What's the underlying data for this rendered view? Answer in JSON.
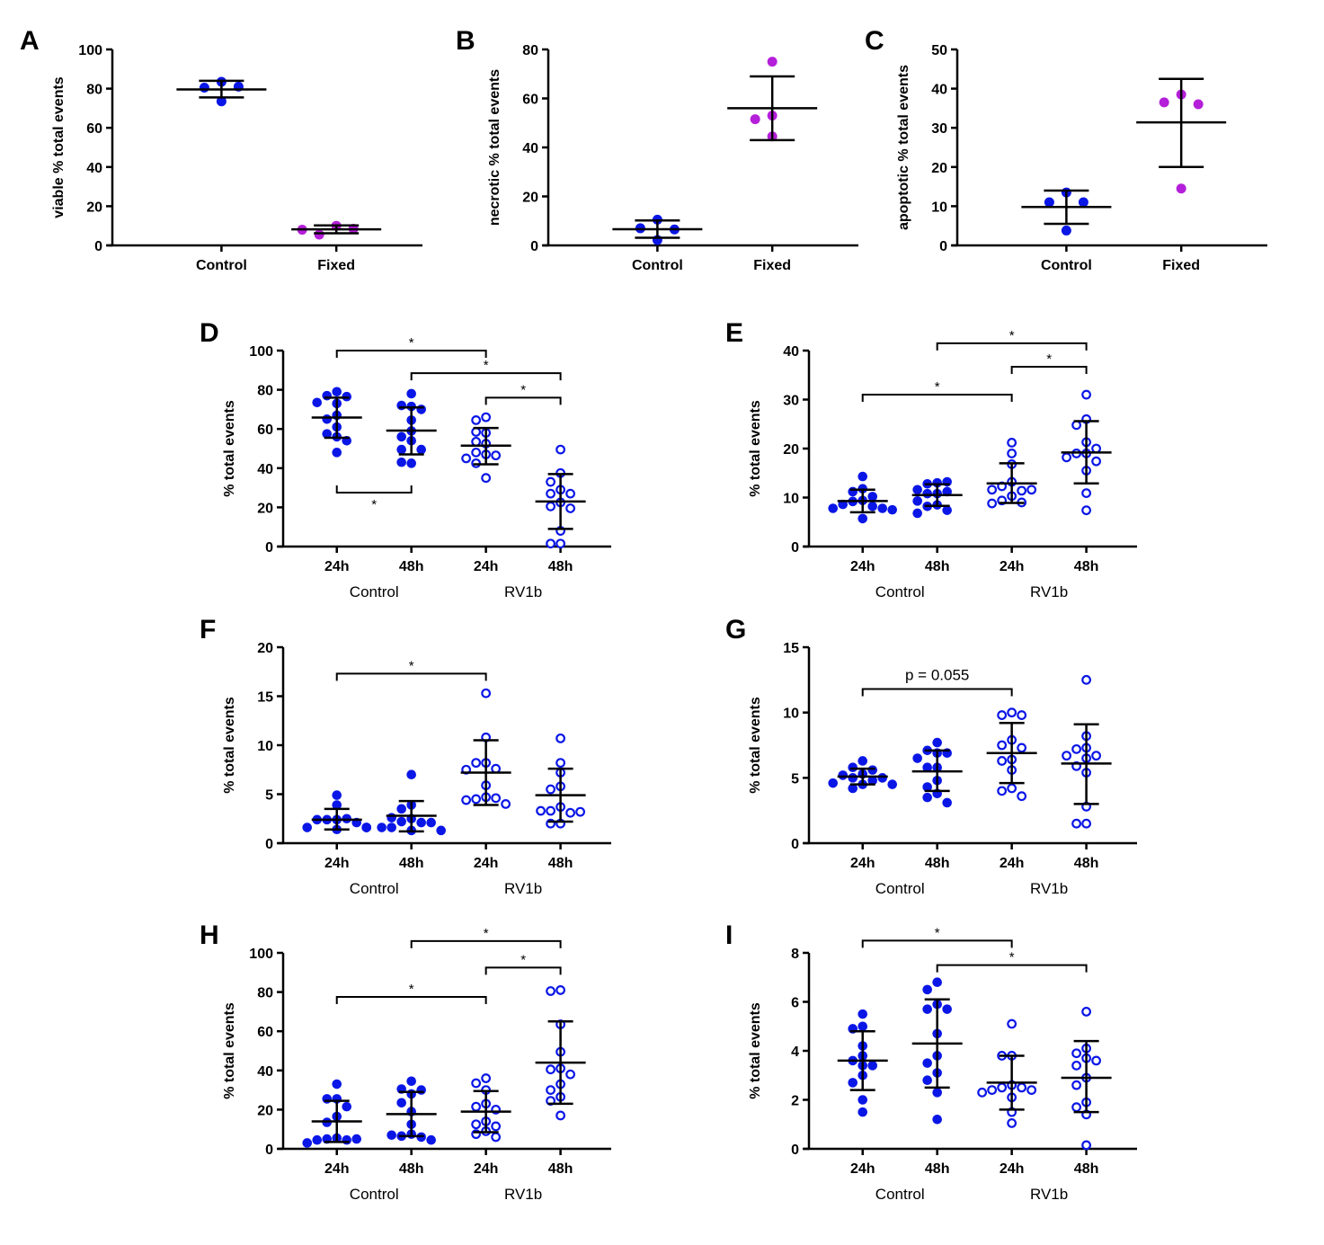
{
  "figure": {
    "colors": {
      "control": "#0a16e6",
      "fixed": "#b41fd9",
      "axis": "#000000"
    }
  },
  "chart_data": [
    {
      "id": "A",
      "type": "scatter",
      "letter": "A",
      "ylabel": "viable % total events",
      "ylim": [
        0,
        100
      ],
      "yticks": [
        0,
        20,
        40,
        60,
        80,
        100
      ],
      "categories": [
        "Control",
        "Fixed"
      ],
      "group_labels": [],
      "series": [
        {
          "name": "Control",
          "style": "filled",
          "color": "control",
          "values": [
            83.5,
            80.5,
            81,
            73.5
          ],
          "mean": 79.6,
          "sd_low": 75.5,
          "sd_high": 84
        },
        {
          "name": "Fixed",
          "style": "filled",
          "color": "fixed",
          "values": [
            10,
            5.5,
            8.5,
            8
          ],
          "mean": 8.2,
          "sd_low": 6.2,
          "sd_high": 10.2
        }
      ],
      "annotations": []
    },
    {
      "id": "B",
      "type": "scatter",
      "letter": "B",
      "ylabel": "necrotic % total events",
      "ylim": [
        0,
        80
      ],
      "yticks": [
        0,
        20,
        40,
        60,
        80
      ],
      "categories": [
        "Control",
        "Fixed"
      ],
      "group_labels": [],
      "series": [
        {
          "name": "Control",
          "style": "filled",
          "color": "control",
          "values": [
            10.5,
            7,
            6.5,
            2.2
          ],
          "mean": 6.6,
          "sd_low": 3.1,
          "sd_high": 10.2
        },
        {
          "name": "Fixed",
          "style": "filled",
          "color": "fixed",
          "values": [
            75,
            53,
            51.5,
            44.5
          ],
          "mean": 56,
          "sd_low": 43,
          "sd_high": 69
        }
      ],
      "annotations": []
    },
    {
      "id": "C",
      "type": "scatter",
      "letter": "C",
      "ylabel": "apoptotic % total events",
      "ylim": [
        0,
        50
      ],
      "yticks": [
        0,
        10,
        20,
        30,
        40,
        50
      ],
      "categories": [
        "Control",
        "Fixed"
      ],
      "group_labels": [],
      "series": [
        {
          "name": "Control",
          "style": "filled",
          "color": "control",
          "values": [
            13.5,
            11,
            11,
            3.8
          ],
          "mean": 9.8,
          "sd_low": 5.5,
          "sd_high": 14
        },
        {
          "name": "Fixed",
          "style": "filled",
          "color": "fixed",
          "values": [
            38.5,
            36.5,
            36,
            14.5
          ],
          "mean": 31.4,
          "sd_low": 20,
          "sd_high": 42.5
        }
      ],
      "annotations": []
    },
    {
      "id": "D",
      "type": "scatter",
      "letter": "D",
      "ylabel": "% total events",
      "ylim": [
        0,
        100
      ],
      "yticks": [
        0,
        20,
        40,
        60,
        80,
        100
      ],
      "categories": [
        "24h",
        "48h",
        "24h",
        "48h"
      ],
      "group_labels": [
        "Control",
        "RV1b"
      ],
      "series": [
        {
          "name": "Control 24h",
          "style": "filled",
          "color": "control",
          "values": [
            79,
            77,
            76.5,
            73,
            73.5,
            67,
            65,
            61,
            57.5,
            56,
            54,
            48
          ],
          "mean": 65.8,
          "sd_low": 55.5,
          "sd_high": 76
        },
        {
          "name": "Control 48h",
          "style": "filled",
          "color": "control",
          "values": [
            78,
            71.5,
            72,
            70,
            64.5,
            59,
            56,
            54,
            49.5,
            49.5,
            42.5,
            43
          ],
          "mean": 59.2,
          "sd_low": 47,
          "sd_high": 71
        },
        {
          "name": "RV1b 24h",
          "style": "open",
          "color": "control",
          "values": [
            66,
            64.5,
            58,
            58.5,
            52.5,
            53.5,
            48,
            47,
            46.5,
            45,
            42.5,
            35
          ],
          "mean": 51.5,
          "sd_low": 42,
          "sd_high": 60.5
        },
        {
          "name": "RV1b 48h",
          "style": "open",
          "color": "control",
          "values": [
            49.5,
            37.5,
            33,
            29,
            27,
            22.5,
            27,
            20.5,
            19.5,
            8,
            1.5,
            1.5
          ],
          "mean": 23,
          "sd_low": 9,
          "sd_high": 37
        }
      ],
      "annotations": [
        {
          "from": 0,
          "to": 2,
          "y": 100,
          "label": "*",
          "dir": "down"
        },
        {
          "from": 1,
          "to": 3,
          "y": 88.5,
          "label": "*",
          "dir": "down"
        },
        {
          "from": 2,
          "to": 3,
          "y": 76,
          "label": "*",
          "dir": "down"
        },
        {
          "from": 0,
          "to": 1,
          "y": 27.5,
          "label": "*",
          "dir": "up"
        }
      ]
    },
    {
      "id": "E",
      "type": "scatter",
      "letter": "E",
      "ylabel": "% total events",
      "ylim": [
        0,
        40
      ],
      "yticks": [
        0,
        10,
        20,
        30,
        40
      ],
      "categories": [
        "24h",
        "48h",
        "24h",
        "48h"
      ],
      "group_labels": [
        "Control",
        "RV1b"
      ],
      "series": [
        {
          "name": "Control 24h",
          "style": "filled",
          "color": "control",
          "values": [
            14.3,
            11.8,
            11.2,
            10.2,
            9.4,
            9.2,
            8.6,
            8.2,
            7.8,
            7.8,
            7.5,
            5.7
          ],
          "mean": 9.3,
          "sd_low": 7,
          "sd_high": 11.6
        },
        {
          "name": "Control 48h",
          "style": "filled",
          "color": "control",
          "values": [
            13,
            12.8,
            13.2,
            11.2,
            11.6,
            10.8,
            10.8,
            9.3,
            8.5,
            8.2,
            7.4,
            6.8
          ],
          "mean": 10.5,
          "sd_low": 8.3,
          "sd_high": 12.7
        },
        {
          "name": "RV1b 24h",
          "style": "open",
          "color": "control",
          "values": [
            21.2,
            19,
            16.8,
            13.2,
            12.3,
            11.4,
            11.6,
            11.6,
            10.3,
            9.4,
            9,
            8.8
          ],
          "mean": 12.9,
          "sd_low": 8.9,
          "sd_high": 17
        },
        {
          "name": "RV1b 48h",
          "style": "open",
          "color": "control",
          "values": [
            31,
            26,
            24.8,
            21.3,
            19,
            19,
            20,
            18.2,
            17.4,
            15.5,
            10.9,
            7.4
          ],
          "mean": 19.2,
          "sd_low": 12.9,
          "sd_high": 25.6
        }
      ],
      "annotations": [
        {
          "from": 1,
          "to": 3,
          "y": 41.5,
          "label": "*",
          "dir": "down"
        },
        {
          "from": 2,
          "to": 3,
          "y": 36.7,
          "label": "*",
          "dir": "down"
        },
        {
          "from": 0,
          "to": 2,
          "y": 31,
          "label": "*",
          "dir": "down"
        }
      ]
    },
    {
      "id": "F",
      "type": "scatter",
      "letter": "F",
      "ylabel": "% total events",
      "ylim": [
        0,
        20
      ],
      "yticks": [
        0,
        5,
        10,
        15,
        20
      ],
      "categories": [
        "24h",
        "48h",
        "24h",
        "48h"
      ],
      "group_labels": [
        "Control",
        "RV1b"
      ],
      "series": [
        {
          "name": "Control 24h",
          "style": "filled",
          "color": "control",
          "values": [
            4.9,
            3.9,
            2.4,
            2.4,
            2.5,
            2.4,
            2.1,
            1.6,
            1.6,
            1.6,
            1.4,
            1.6
          ],
          "mean": 2.4,
          "sd_low": 1.4,
          "sd_high": 3.5
        },
        {
          "name": "Control 48h",
          "style": "filled",
          "color": "control",
          "values": [
            7,
            3.9,
            3.5,
            2.5,
            2.2,
            2.1,
            2.6,
            2.1,
            1.6,
            1.6,
            1.3,
            1.3
          ],
          "mean": 2.8,
          "sd_low": 1.2,
          "sd_high": 4.3
        },
        {
          "name": "RV1b 24h",
          "style": "open",
          "color": "control",
          "values": [
            15.3,
            10.8,
            8.2,
            8.2,
            7.6,
            7.5,
            5.9,
            4.7,
            4.5,
            4.6,
            4.4,
            4
          ],
          "mean": 7.2,
          "sd_low": 3.9,
          "sd_high": 10.5
        },
        {
          "name": "RV1b 48h",
          "style": "open",
          "color": "control",
          "values": [
            10.7,
            8.2,
            7.2,
            5.8,
            5.5,
            3.7,
            3.3,
            3.1,
            3.3,
            3.2,
            2,
            2
          ],
          "mean": 4.9,
          "sd_low": 2.2,
          "sd_high": 7.6
        }
      ],
      "annotations": [
        {
          "from": 0,
          "to": 2,
          "y": 17.3,
          "label": "*",
          "dir": "down"
        }
      ]
    },
    {
      "id": "G",
      "type": "scatter",
      "letter": "G",
      "ylabel": "% total events",
      "ylim": [
        0,
        15
      ],
      "yticks": [
        0,
        5,
        10,
        15
      ],
      "categories": [
        "24h",
        "48h",
        "24h",
        "48h"
      ],
      "group_labels": [
        "Control",
        "RV1b"
      ],
      "series": [
        {
          "name": "Control 24h",
          "style": "filled",
          "color": "control",
          "values": [
            6.3,
            5.8,
            5.6,
            5.3,
            5.2,
            5,
            5,
            4.8,
            4.6,
            4.5,
            4.5,
            4.2
          ],
          "mean": 5.1,
          "sd_low": 4.5,
          "sd_high": 5.7
        },
        {
          "name": "Control 48h",
          "style": "filled",
          "color": "control",
          "values": [
            7.7,
            7.1,
            6.9,
            6.9,
            6.5,
            5.8,
            5.8,
            4.8,
            4.3,
            3.8,
            3.5,
            3.1
          ],
          "mean": 5.5,
          "sd_low": 4,
          "sd_high": 7.1
        },
        {
          "name": "RV1b 24h",
          "style": "open",
          "color": "control",
          "values": [
            10,
            9.8,
            9.8,
            7.9,
            7.5,
            7.3,
            6.4,
            6.3,
            5.6,
            4.2,
            4,
            3.6
          ],
          "mean": 6.9,
          "sd_low": 4.6,
          "sd_high": 9.2
        },
        {
          "name": "RV1b 48h",
          "style": "open",
          "color": "control",
          "values": [
            12.5,
            8.2,
            7.3,
            7.2,
            6.7,
            6.7,
            6.5,
            5.9,
            5.4,
            2.8,
            1.5,
            1.5
          ],
          "mean": 6.1,
          "sd_low": 3,
          "sd_high": 9.1
        }
      ],
      "annotations": [
        {
          "from": 0,
          "to": 2,
          "y": 11.8,
          "label": "p = 0.055",
          "dir": "down",
          "style": "p"
        }
      ]
    },
    {
      "id": "H",
      "type": "scatter",
      "letter": "H",
      "ylabel": "% total events",
      "ylim": [
        0,
        100
      ],
      "yticks": [
        0,
        20,
        40,
        60,
        80,
        100
      ],
      "categories": [
        "24h",
        "48h",
        "24h",
        "48h"
      ],
      "group_labels": [
        "Control",
        "RV1b"
      ],
      "series": [
        {
          "name": "Control 24h",
          "style": "filled",
          "color": "control",
          "values": [
            33,
            25.5,
            25.5,
            21.5,
            16.5,
            13.5,
            5.5,
            5,
            4.5,
            4.5,
            5,
            3
          ],
          "mean": 14,
          "sd_low": 3.5,
          "sd_high": 24.5
        },
        {
          "name": "Control 48h",
          "style": "filled",
          "color": "control",
          "values": [
            34.5,
            30.5,
            30,
            28,
            23.5,
            19,
            12.5,
            7.5,
            6.5,
            6,
            7,
            4.5
          ],
          "mean": 17.7,
          "sd_low": 6.5,
          "sd_high": 29
        },
        {
          "name": "RV1b 24h",
          "style": "open",
          "color": "control",
          "values": [
            36,
            33.5,
            30,
            23,
            21.5,
            20,
            14,
            12.5,
            11.5,
            9,
            7.5,
            6
          ],
          "mean": 19,
          "sd_low": 8.5,
          "sd_high": 29.5
        },
        {
          "name": "RV1b 48h",
          "style": "open",
          "color": "control",
          "values": [
            81,
            80.5,
            63.5,
            49.5,
            41,
            40.5,
            38,
            33,
            30,
            26.5,
            24.5,
            17
          ],
          "mean": 44,
          "sd_low": 23,
          "sd_high": 65
        }
      ],
      "annotations": [
        {
          "from": 1,
          "to": 3,
          "y": 106,
          "label": "*",
          "dir": "down"
        },
        {
          "from": 2,
          "to": 3,
          "y": 92.5,
          "label": "*",
          "dir": "down"
        },
        {
          "from": 0,
          "to": 2,
          "y": 77.5,
          "label": "*",
          "dir": "down"
        }
      ]
    },
    {
      "id": "I",
      "type": "scatter",
      "letter": "I",
      "ylabel": "% total events",
      "ylim": [
        0,
        8
      ],
      "yticks": [
        0,
        2,
        4,
        6,
        8
      ],
      "categories": [
        "24h",
        "48h",
        "24h",
        "48h"
      ],
      "group_labels": [
        "Control",
        "RV1b"
      ],
      "series": [
        {
          "name": "Control 24h",
          "style": "filled",
          "color": "control",
          "values": [
            5.5,
            5,
            4.9,
            4.2,
            3.8,
            3.6,
            3.4,
            3.4,
            3,
            2.7,
            2,
            1.5
          ],
          "mean": 3.6,
          "sd_low": 2.4,
          "sd_high": 4.8
        },
        {
          "name": "Control 48h",
          "style": "filled",
          "color": "control",
          "values": [
            6.8,
            6.5,
            5.9,
            5.7,
            5.7,
            4.7,
            3.8,
            3.5,
            3.1,
            2.8,
            2.3,
            1.2
          ],
          "mean": 4.3,
          "sd_low": 2.5,
          "sd_high": 6.1
        },
        {
          "name": "RV1b 24h",
          "style": "open",
          "color": "control",
          "values": [
            5.1,
            3.8,
            3.8,
            2.6,
            2.5,
            2.5,
            2.4,
            2.4,
            2.3,
            2.1,
            1.5,
            1.05
          ],
          "mean": 2.7,
          "sd_low": 1.6,
          "sd_high": 3.8
        },
        {
          "name": "RV1b 48h",
          "style": "open",
          "color": "control",
          "values": [
            5.6,
            4.1,
            3.9,
            3.7,
            3.6,
            3.4,
            2.9,
            2.6,
            1.9,
            1.7,
            1.4,
            0.15
          ],
          "mean": 2.9,
          "sd_low": 1.5,
          "sd_high": 4.4
        }
      ],
      "annotations": [
        {
          "from": 0,
          "to": 2,
          "y": 8.5,
          "label": "*",
          "dir": "down"
        },
        {
          "from": 1,
          "to": 3,
          "y": 7.5,
          "label": "*",
          "dir": "down"
        }
      ]
    }
  ]
}
